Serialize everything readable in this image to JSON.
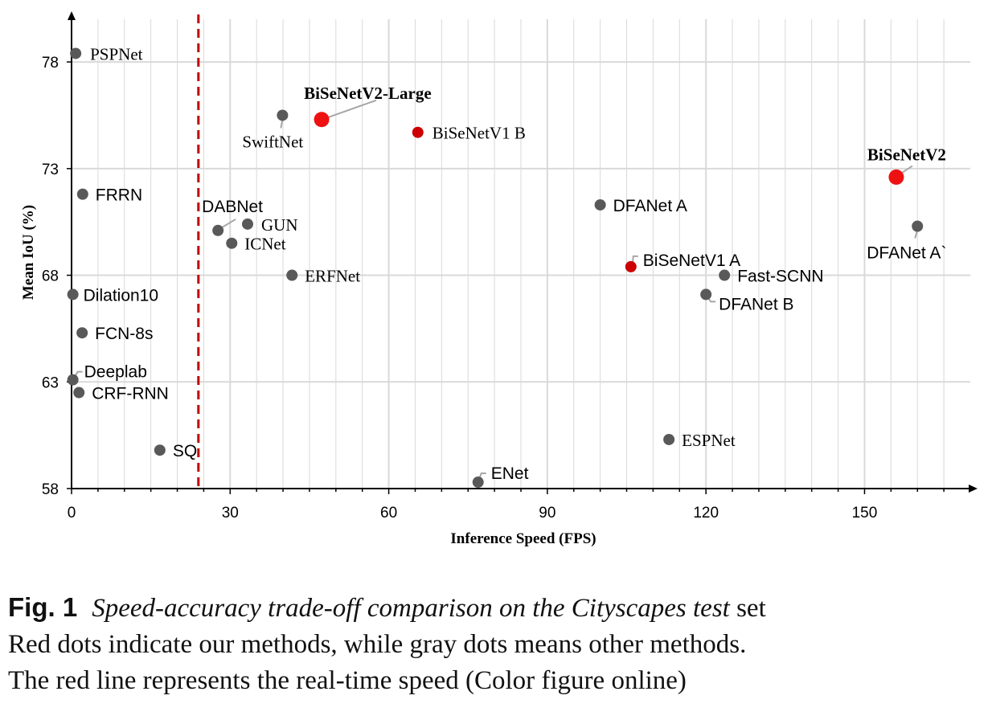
{
  "chart_data": {
    "type": "scatter",
    "title": "",
    "xlabel": "Inference Speed (FPS)",
    "ylabel": "Mean IoU (%)",
    "xlim": [
      0,
      170
    ],
    "ylim": [
      58,
      80
    ],
    "xticks": [
      0,
      30,
      60,
      90,
      120,
      150
    ],
    "yticks": [
      58,
      63,
      68,
      73,
      78
    ],
    "realtime_line_fps": 24,
    "colors": {
      "ours": "#ee1111",
      "ours_dark": "#cc0000",
      "other": "#595959",
      "realtime_line": "#c00000",
      "grid": "#d9d9d9",
      "leader": "#a6a6a6"
    },
    "points": [
      {
        "name": "PSPNet",
        "fps": 0.78,
        "miou": 78.4,
        "group": "other"
      },
      {
        "name": "BiSeNetV2-Large",
        "fps": 47.3,
        "miou": 75.3,
        "group": "ours",
        "bold": true,
        "big": true
      },
      {
        "name": "SwiftNet",
        "fps": 39.9,
        "miou": 75.5,
        "group": "other"
      },
      {
        "name": "BiSeNetV1 B",
        "fps": 65.5,
        "miou": 74.7,
        "group": "ours_dark"
      },
      {
        "name": "BiSeNetV2",
        "fps": 156,
        "miou": 72.6,
        "group": "ours",
        "bold": true,
        "big": true
      },
      {
        "name": "FRRN",
        "fps": 2.1,
        "miou": 71.8,
        "group": "other"
      },
      {
        "name": "DFANet A",
        "fps": 100,
        "miou": 71.3,
        "group": "other"
      },
      {
        "name": "DABNet",
        "fps": 27.7,
        "miou": 70.1,
        "group": "other"
      },
      {
        "name": "GUN",
        "fps": 33.3,
        "miou": 70.4,
        "group": "other"
      },
      {
        "name": "DFANet A`",
        "fps": 160,
        "miou": 70.3,
        "group": "other"
      },
      {
        "name": "ICNet",
        "fps": 30.3,
        "miou": 69.5,
        "group": "other"
      },
      {
        "name": "BiSeNetV1 A",
        "fps": 105.8,
        "miou": 68.4,
        "group": "ours_dark"
      },
      {
        "name": "ERFNet",
        "fps": 41.7,
        "miou": 68.0,
        "group": "other"
      },
      {
        "name": "Fast-SCNN",
        "fps": 123.5,
        "miou": 68.0,
        "group": "other"
      },
      {
        "name": "Dilation10",
        "fps": 0.25,
        "miou": 67.1,
        "group": "other"
      },
      {
        "name": "DFANet B",
        "fps": 120,
        "miou": 67.1,
        "group": "other"
      },
      {
        "name": "FCN-8s",
        "fps": 2.0,
        "miou": 65.3,
        "group": "other"
      },
      {
        "name": "Deeplab",
        "fps": 0.25,
        "miou": 63.1,
        "group": "other"
      },
      {
        "name": "CRF-RNN",
        "fps": 1.4,
        "miou": 62.5,
        "group": "other"
      },
      {
        "name": "SQ",
        "fps": 16.7,
        "miou": 59.8,
        "group": "other"
      },
      {
        "name": "ESPNet",
        "fps": 113,
        "miou": 60.3,
        "group": "other"
      },
      {
        "name": "ENet",
        "fps": 76.9,
        "miou": 58.3,
        "group": "other"
      }
    ]
  },
  "caption": {
    "fig_label": "Fig. 1",
    "italic_text": "Speed-accuracy trade-off comparison on the Cityscapes test",
    "line1_tail": " set",
    "line2": "Red dots indicate our methods, while gray dots means other methods.",
    "line3": "The red line represents the real-time speed (Color figure online)"
  }
}
